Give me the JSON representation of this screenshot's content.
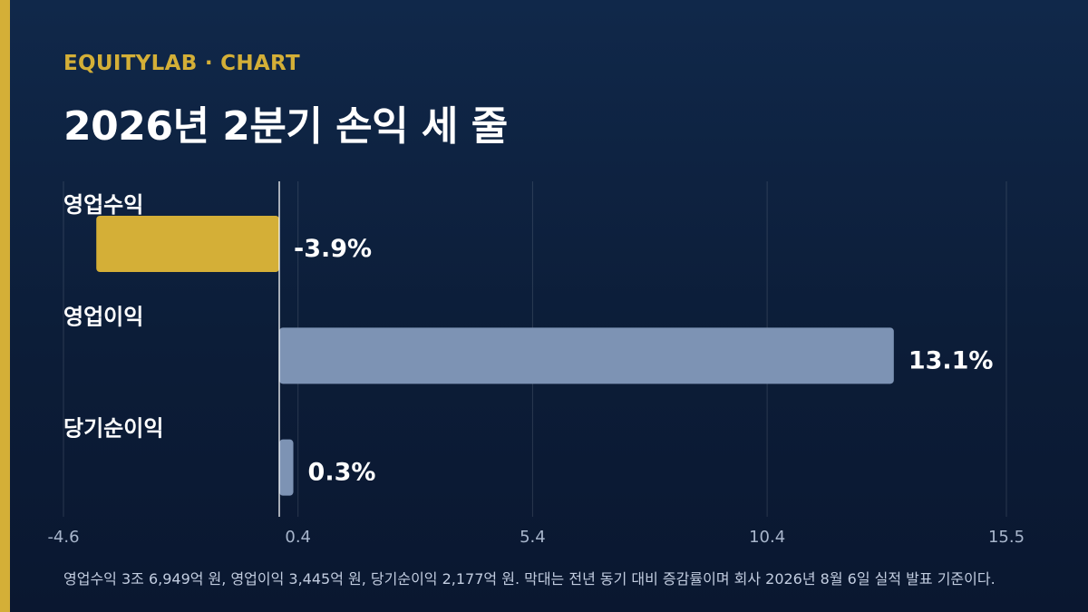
{
  "brand_label": "EQUITYLAB · CHART",
  "colors": {
    "accent": "#d4af37",
    "background": "#0c1d38",
    "bar_negative": "#d4af37",
    "bar_positive": "#7d93b4",
    "text": "#ffffff",
    "tick": "#a8b6cc"
  },
  "chart_data": {
    "type": "bar",
    "orientation": "horizontal",
    "title": "2026년 2분기 손익 세 줄",
    "categories": [
      "영업수익",
      "영업이익",
      "당기순이익"
    ],
    "values": [
      -3.9,
      13.1,
      0.3
    ],
    "value_labels": [
      "-3.9%",
      "13.1%",
      "0.3%"
    ],
    "xlim": [
      -4.6,
      15.5
    ],
    "x_ticks": [
      -4.6,
      0.4,
      5.4,
      10.4,
      15.5
    ],
    "x_tick_labels": [
      "-4.6",
      "0.4",
      "5.4",
      "10.4",
      "15.5"
    ],
    "zero_line": 0,
    "grid": true,
    "legend": "none"
  },
  "footnote": "영업수익 3조 6,949억 원, 영업이익 3,445억 원, 당기순이익 2,177억 원. 막대는 전년 동기 대비 증감률이며 회사 2026년 8월 6일 실적 발표 기준이다."
}
